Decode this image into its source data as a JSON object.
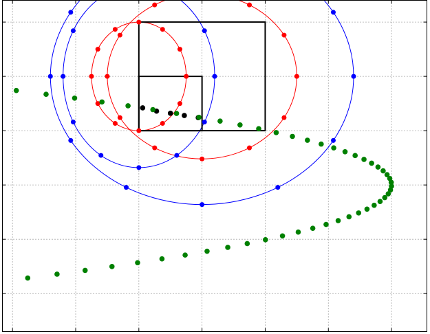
{
  "chart_data": {
    "type": "scatter",
    "xlim": [
      -0.08,
      3.28
    ],
    "ylim": [
      -2.35,
      0.7
    ],
    "grid": true,
    "x_ticks": [
      0,
      0.5,
      1,
      1.5,
      2,
      2.5,
      3
    ],
    "y_ticks": [
      0.5,
      0,
      -0.5,
      -1,
      -1.5,
      -2
    ],
    "colors": {
      "blue": "#0000ff",
      "red": "#ff0000",
      "black": "#000000",
      "green": "#008000",
      "grid": "#555555",
      "frame": "#000000"
    },
    "ellipses": [
      {
        "name": "blue-outer-ellipse",
        "color": "blue",
        "cx": 1.5,
        "cy": 0.0,
        "rx": 1.2,
        "ry": 1.18,
        "markers": 12
      },
      {
        "name": "blue-inner-ellipse",
        "color": "blue",
        "cx": 1.0,
        "cy": 0.0,
        "rx": 0.6,
        "ry": 0.84,
        "markers": 12
      },
      {
        "name": "red-outer-ellipse",
        "color": "red",
        "cx": 1.5,
        "cy": 0.0,
        "rx": 0.75,
        "ry": 0.76,
        "markers": 12
      },
      {
        "name": "red-inner-ellipse",
        "color": "red",
        "cx": 1.0,
        "cy": 0.0,
        "rx": 0.375,
        "ry": 0.5,
        "markers": 12
      }
    ],
    "rectangles": [
      {
        "name": "large-black-rectangle",
        "x0": 1.0,
        "y0": -0.5,
        "x1": 2.0,
        "y1": 0.5
      },
      {
        "name": "small-black-rectangle",
        "x0": 1.0,
        "y0": -0.5,
        "x1": 1.5,
        "y1": 0.0
      }
    ],
    "black_points": {
      "x": [
        1.03,
        1.14,
        1.25,
        1.36,
        1.47
      ],
      "y": [
        -0.29,
        -0.32,
        -0.34,
        -0.36,
        -0.38
      ]
    },
    "green_curve": {
      "x_start": 0.03,
      "y_start": -0.13,
      "x_peak": 3.0,
      "y_peak": -1.0,
      "y_end": -2.35,
      "count": 64
    }
  }
}
